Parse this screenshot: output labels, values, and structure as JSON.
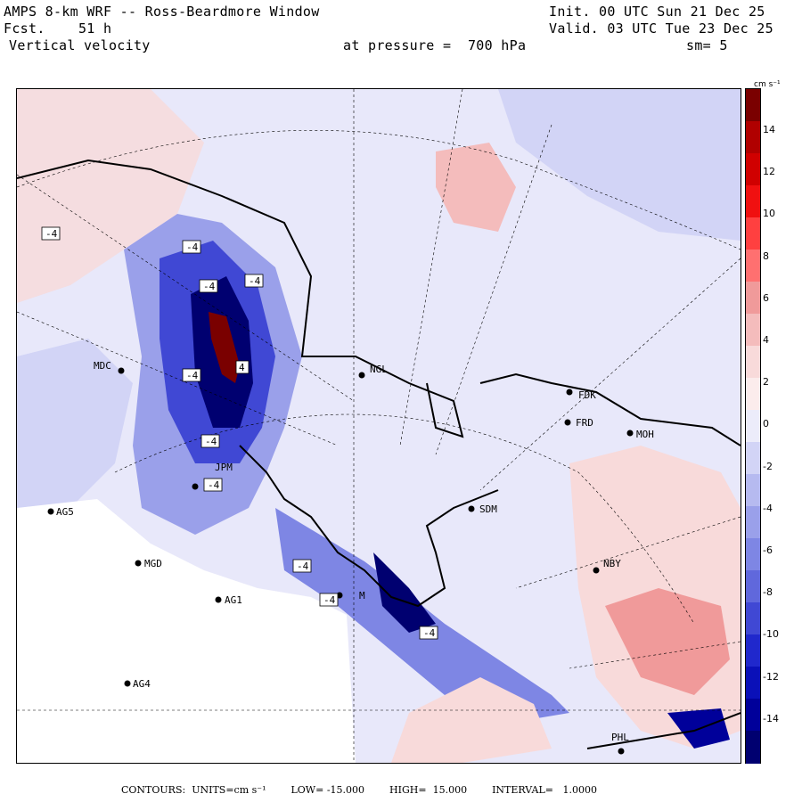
{
  "header": {
    "model": "AMPS 8-km WRF -- Ross-Beardmore Window",
    "init": "Init. 00 UTC Sun 21 Dec 25",
    "fcst": "Fcst.    51 h",
    "valid": "Valid. 03 UTC Tue 23 Dec 25",
    "field": "Vertical velocity",
    "pressure": "at pressure =  700 hPa",
    "smoothing": "sm= 5"
  },
  "colorbar": {
    "units": "cm s⁻¹",
    "ticks": [
      "14",
      "12",
      "10",
      "8",
      "6",
      "4",
      "2",
      "0",
      "-2",
      "-4",
      "-6",
      "-8",
      "-10",
      "-12",
      "-14"
    ],
    "colors": [
      "#7a0000",
      "#b00000",
      "#d00000",
      "#f01010",
      "#ff4040",
      "#ff7070",
      "#f09a9a",
      "#f4bcbc",
      "#f8dada",
      "#fbecec",
      "#ececfa",
      "#d2d4f6",
      "#b6baf0",
      "#9aa0ea",
      "#7e86e4",
      "#6068dc",
      "#4048d4",
      "#2028cc",
      "#0a10b8",
      "#00009a",
      "#000070"
    ]
  },
  "stations": [
    {
      "id": "MDC",
      "label": "MDC"
    },
    {
      "id": "NGL",
      "label": "NGL"
    },
    {
      "id": "FDK",
      "label": "FDK"
    },
    {
      "id": "FRD",
      "label": "FRD"
    },
    {
      "id": "MOH",
      "label": "MOH"
    },
    {
      "id": "SDM",
      "label": "SDM"
    },
    {
      "id": "AG5",
      "label": "AG5"
    },
    {
      "id": "MGD",
      "label": "MGD"
    },
    {
      "id": "AG1",
      "label": "AG1"
    },
    {
      "id": "NBY",
      "label": "NBY"
    },
    {
      "id": "AG4",
      "label": "AG4"
    },
    {
      "id": "PHL",
      "label": "PHL"
    },
    {
      "id": "JPM",
      "label": "JPM"
    },
    {
      "id": "EMM",
      "label": "M"
    }
  ],
  "contour_labels": [
    "-4",
    "-4",
    "-4",
    "-4",
    "4",
    "-4",
    "-4",
    "-4",
    "-4",
    "-4",
    "-4"
  ],
  "footer": {
    "contours": "CONTOURS:  UNITS=cm s⁻¹",
    "low": "LOW= -15.000",
    "high": "HIGH=  15.000",
    "interval": "INTERVAL=   1.0000"
  }
}
